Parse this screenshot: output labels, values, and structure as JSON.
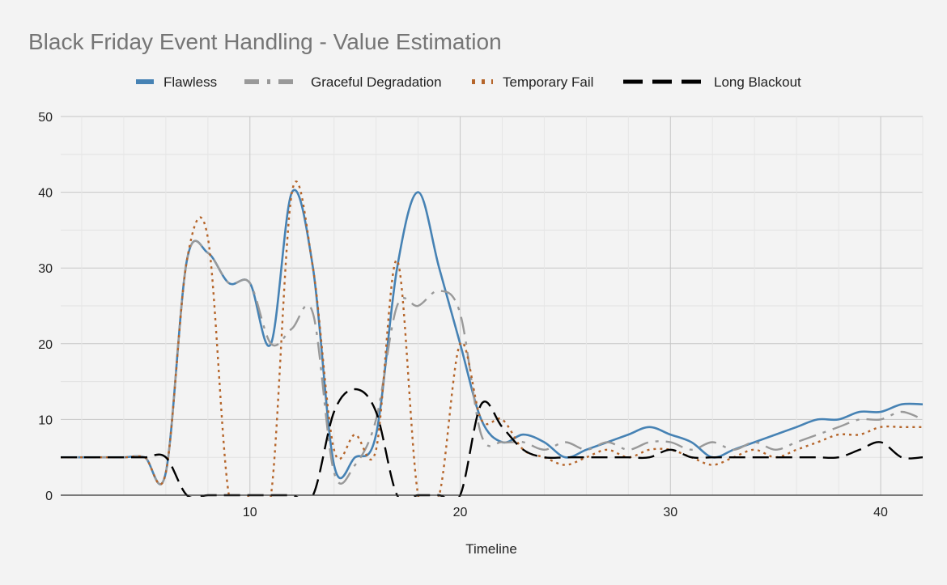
{
  "chart_data": {
    "type": "line",
    "title": "Black Friday Event Handling - Value Estimation",
    "xlabel": "Timeline",
    "ylabel": "",
    "xlim": [
      1,
      42
    ],
    "ylim": [
      0,
      50
    ],
    "x_ticks": [
      10,
      20,
      30,
      40
    ],
    "y_ticks": [
      0,
      10,
      20,
      30,
      40,
      50
    ],
    "grid": true,
    "legend_position": "top",
    "x": [
      1,
      2,
      3,
      4,
      5,
      6,
      7,
      8,
      9,
      10,
      11,
      12,
      13,
      14,
      15,
      16,
      17,
      18,
      19,
      20,
      21,
      22,
      23,
      24,
      25,
      26,
      27,
      28,
      29,
      30,
      31,
      32,
      33,
      34,
      35,
      36,
      37,
      38,
      39,
      40,
      41,
      42
    ],
    "series": [
      {
        "name": "Flawless",
        "color": "#4682b4",
        "dash": "solid",
        "values": [
          5,
          5,
          5,
          5,
          5,
          3,
          31,
          32,
          28,
          28,
          20,
          40,
          30,
          4,
          5,
          8,
          30,
          40,
          30,
          20,
          10,
          7,
          8,
          7,
          5,
          6,
          7,
          8,
          9,
          8,
          7,
          5,
          6,
          7,
          8,
          9,
          10,
          10,
          11,
          11,
          12,
          12
        ]
      },
      {
        "name": "Graceful Degradation",
        "color": "#999999",
        "dash": "dashdot",
        "values": [
          5,
          5,
          5,
          5,
          5,
          3,
          31,
          32,
          28,
          28,
          20,
          22,
          24,
          3,
          4,
          10,
          25,
          25,
          27,
          24,
          8,
          7,
          7,
          6,
          7,
          6,
          7,
          6,
          7,
          7,
          6,
          7,
          6,
          7,
          6,
          7,
          8,
          9,
          10,
          10,
          11,
          10
        ]
      },
      {
        "name": "Temporary Fail",
        "color": "#b5652a",
        "dash": "dotted",
        "values": [
          5,
          5,
          5,
          5,
          5,
          3,
          31,
          34,
          0,
          0,
          0,
          40,
          30,
          6,
          8,
          6,
          31,
          0,
          0,
          20,
          10,
          10,
          6,
          5,
          4,
          5,
          6,
          5,
          6,
          6,
          5,
          4,
          5,
          6,
          5,
          6,
          7,
          8,
          8,
          9,
          9,
          9
        ]
      },
      {
        "name": "Long Blackout",
        "color": "#000000",
        "dash": "dashed",
        "values": [
          5,
          5,
          5,
          5,
          5,
          5,
          0,
          0,
          0,
          0,
          0,
          0,
          0,
          11,
          14,
          11,
          0,
          0,
          0,
          0,
          12,
          9,
          6,
          5,
          5,
          5,
          5,
          5,
          5,
          6,
          5,
          5,
          5,
          5,
          5,
          5,
          5,
          5,
          6,
          7,
          5,
          5
        ]
      }
    ]
  }
}
